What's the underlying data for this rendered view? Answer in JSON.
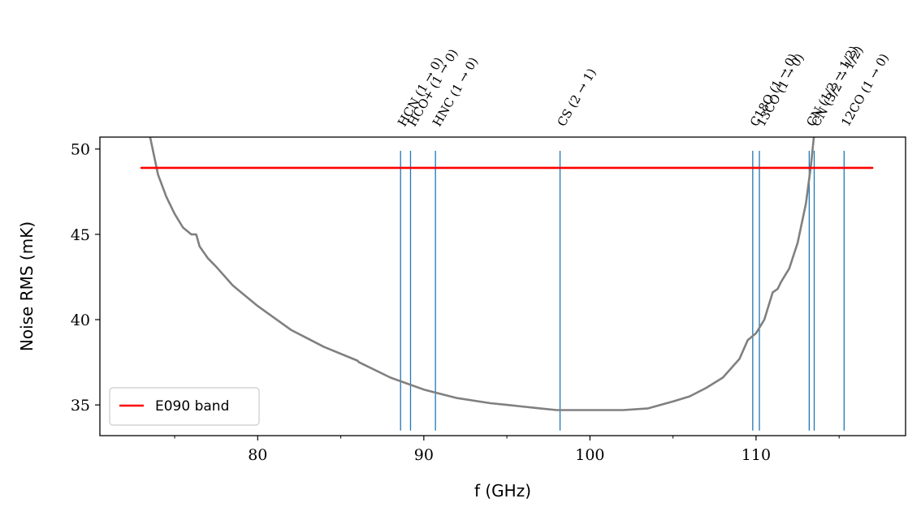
{
  "chart_data": {
    "type": "line",
    "title": "",
    "xlabel": "f (GHz)",
    "ylabel": "Noise RMS (mK)",
    "xlim": [
      70.5,
      119
    ],
    "ylim": [
      33.2,
      50.7
    ],
    "x_ticks": [
      80,
      90,
      100,
      110
    ],
    "x_tick_labels": [
      "80",
      "90",
      "100",
      "110"
    ],
    "x_minor_ticks": [
      75,
      85,
      95,
      105,
      115
    ],
    "y_ticks": [
      35,
      40,
      45,
      50
    ],
    "y_tick_labels": [
      "35",
      "40",
      "45",
      "50"
    ],
    "grid": false,
    "legend": {
      "placement": "lower-left",
      "entries": [
        {
          "label": "E090 band",
          "color": "#ff0000"
        }
      ]
    },
    "series": [
      {
        "name": "",
        "color": "#808080",
        "x": [
          73.5,
          74.0,
          74.5,
          75.0,
          75.5,
          76.0,
          76.3,
          76.5,
          77.0,
          77.5,
          78.5,
          80.0,
          82.0,
          84.0,
          86.0,
          86.1,
          88.0,
          90.0,
          92.0,
          94.0,
          95.0,
          97.0,
          98.0,
          100.0,
          101.0,
          102.0,
          103.5,
          105.0,
          106.0,
          107.0,
          108.0,
          109.0,
          109.5,
          110.0,
          110.5,
          111.0,
          111.3,
          111.5,
          112.0,
          112.5,
          113.0,
          113.3,
          113.5
        ],
        "y": [
          50.8,
          48.5,
          47.2,
          46.2,
          45.4,
          45.0,
          45.0,
          44.3,
          43.6,
          43.1,
          42.0,
          40.8,
          39.4,
          38.4,
          37.6,
          37.5,
          36.6,
          35.9,
          35.4,
          35.1,
          35.0,
          34.8,
          34.7,
          34.7,
          34.7,
          34.7,
          34.8,
          35.2,
          35.5,
          36.0,
          36.6,
          37.7,
          38.8,
          39.2,
          40.0,
          41.6,
          41.8,
          42.2,
          43.0,
          44.5,
          46.8,
          49.0,
          50.9
        ]
      },
      {
        "name": "E090 band",
        "color": "#ff0000",
        "x": [
          73.0,
          117.0
        ],
        "y": [
          48.9,
          48.9
        ]
      }
    ],
    "vertical_lines": {
      "color": "#1f77b4",
      "x": [
        88.6,
        89.2,
        90.7,
        98.2,
        109.8,
        110.2,
        113.2,
        113.5,
        115.3
      ],
      "labels": [
        "HCN (1 → 0)",
        "HCO+ (1 → 0)",
        "HNC (1 → 0)",
        "CS (2 → 1)",
        "C18O (1 → 0)",
        "13CO (1 → 0)",
        "CN (1/2 → 1/2)",
        "CN (3/2 → 1/2)",
        "12CO (1 → 0)"
      ]
    }
  }
}
